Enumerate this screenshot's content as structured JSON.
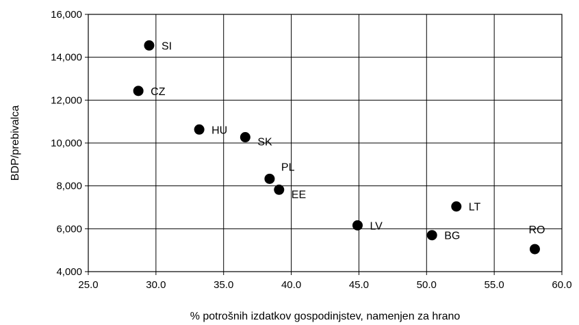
{
  "chart_data": {
    "type": "scatter",
    "title": "",
    "xlabel": "% potrošnih izdatkov gospodinjstev, namenjen za hrano",
    "ylabel": "BDP/prebivalca",
    "xlim": [
      25.0,
      60.0
    ],
    "ylim": [
      4000,
      16000
    ],
    "x_ticks": [
      "25.0",
      "30.0",
      "35.0",
      "40.0",
      "45.0",
      "50.0",
      "55.0",
      "60.0"
    ],
    "y_ticks": [
      "4,000",
      "6,000",
      "8,000",
      "10,000",
      "12,000",
      "14,000",
      "16,000"
    ],
    "grid": true,
    "point_color": "#000000",
    "points": [
      {
        "label": "SI",
        "x": 29.5,
        "y": 14550,
        "label_pos": "right"
      },
      {
        "label": "CZ",
        "x": 28.7,
        "y": 12430,
        "label_pos": "right"
      },
      {
        "label": "HU",
        "x": 33.2,
        "y": 10630,
        "label_pos": "right"
      },
      {
        "label": "SK",
        "x": 36.6,
        "y": 10270,
        "label_pos": "below-right"
      },
      {
        "label": "PL",
        "x": 38.4,
        "y": 8330,
        "label_pos": "above-right"
      },
      {
        "label": "EE",
        "x": 39.1,
        "y": 7820,
        "label_pos": "below-right"
      },
      {
        "label": "LV",
        "x": 44.9,
        "y": 6160,
        "label_pos": "right"
      },
      {
        "label": "BG",
        "x": 50.4,
        "y": 5700,
        "label_pos": "right"
      },
      {
        "label": "LT",
        "x": 52.2,
        "y": 7040,
        "label_pos": "right"
      },
      {
        "label": "RO",
        "x": 58.0,
        "y": 5050,
        "label_pos": "above"
      }
    ]
  }
}
